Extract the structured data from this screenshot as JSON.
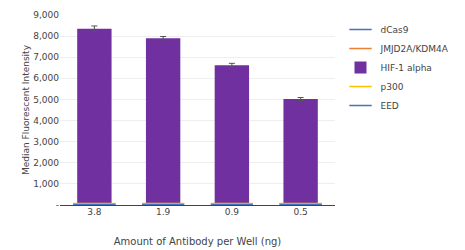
{
  "chart_data": {
    "type": "bar",
    "categories": [
      "3.8",
      "1.9",
      "0.9",
      "0.5"
    ],
    "xlabel": "Amount of Antibody per Well (ng)",
    "ylabel": "Median Fluorescent Intensity",
    "series": [
      {
        "name": "dCas9",
        "type": "scatter",
        "marker": "dash",
        "color": "#4472C4",
        "values": [
          30,
          30,
          30,
          30
        ]
      },
      {
        "name": "JMJD2A/KDM4A",
        "type": "scatter",
        "marker": "dash",
        "color": "#ED7D31",
        "values": [
          55,
          55,
          55,
          55
        ]
      },
      {
        "name": "HIF-1 alpha",
        "type": "bar",
        "color": "#7030A0",
        "values": [
          8350,
          7900,
          6620,
          5020
        ],
        "errors": [
          130,
          80,
          90,
          70
        ]
      },
      {
        "name": "p300",
        "type": "scatter",
        "marker": "dash",
        "color": "#FFC000",
        "values": [
          70,
          70,
          70,
          70
        ]
      },
      {
        "name": "EED",
        "type": "scatter",
        "marker": "dash",
        "color": "#4472C4",
        "values": [
          25,
          25,
          25,
          25
        ]
      }
    ],
    "ylim": [
      0,
      9000
    ],
    "yticks": [
      {
        "value": 0,
        "label": "-"
      },
      {
        "value": 1000,
        "label": "1,000"
      },
      {
        "value": 2000,
        "label": "2,000"
      },
      {
        "value": 3000,
        "label": "3,000"
      },
      {
        "value": 4000,
        "label": "4,000"
      },
      {
        "value": 5000,
        "label": "5,000"
      },
      {
        "value": 6000,
        "label": "6,000"
      },
      {
        "value": 7000,
        "label": "7,000"
      },
      {
        "value": 8000,
        "label": "8,000"
      },
      {
        "value": 9000,
        "label": "9,000"
      }
    ],
    "grid": true,
    "legend": "right"
  }
}
